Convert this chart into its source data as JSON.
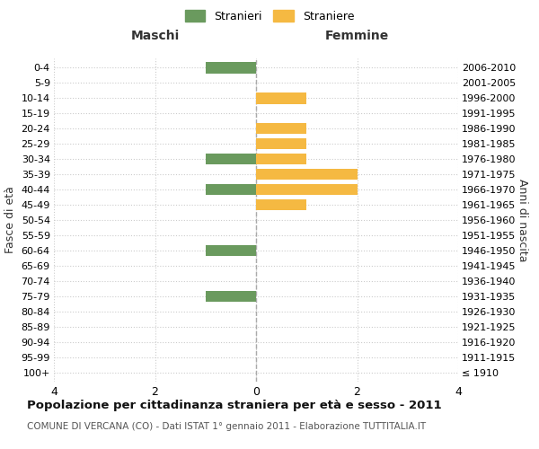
{
  "age_groups": [
    "100+",
    "95-99",
    "90-94",
    "85-89",
    "80-84",
    "75-79",
    "70-74",
    "65-69",
    "60-64",
    "55-59",
    "50-54",
    "45-49",
    "40-44",
    "35-39",
    "30-34",
    "25-29",
    "20-24",
    "15-19",
    "10-14",
    "5-9",
    "0-4"
  ],
  "birth_years": [
    "≤ 1910",
    "1911-1915",
    "1916-1920",
    "1921-1925",
    "1926-1930",
    "1931-1935",
    "1936-1940",
    "1941-1945",
    "1946-1950",
    "1951-1955",
    "1956-1960",
    "1961-1965",
    "1966-1970",
    "1971-1975",
    "1976-1980",
    "1981-1985",
    "1986-1990",
    "1991-1995",
    "1996-2000",
    "2001-2005",
    "2006-2010"
  ],
  "maschi": [
    0,
    0,
    0,
    0,
    0,
    1,
    0,
    0,
    1,
    0,
    0,
    0,
    1,
    0,
    1,
    0,
    0,
    0,
    0,
    0,
    1
  ],
  "femmine": [
    0,
    0,
    0,
    0,
    0,
    0,
    0,
    0,
    0,
    0,
    0,
    1,
    2,
    2,
    1,
    1,
    1,
    0,
    1,
    0,
    0
  ],
  "male_color": "#6a9a5e",
  "female_color": "#f5b942",
  "xlim": 4,
  "xlabel_left": "Maschi",
  "xlabel_right": "Femmine",
  "ylabel_left": "Fasce di età",
  "ylabel_right": "Anni di nascita",
  "legend_male": "Stranieri",
  "legend_female": "Straniere",
  "title": "Popolazione per cittadinanza straniera per età e sesso - 2011",
  "subtitle": "COMUNE DI VERCANA (CO) - Dati ISTAT 1° gennaio 2011 - Elaborazione TUTTITALIA.IT",
  "background_color": "#ffffff",
  "grid_color": "#cccccc"
}
